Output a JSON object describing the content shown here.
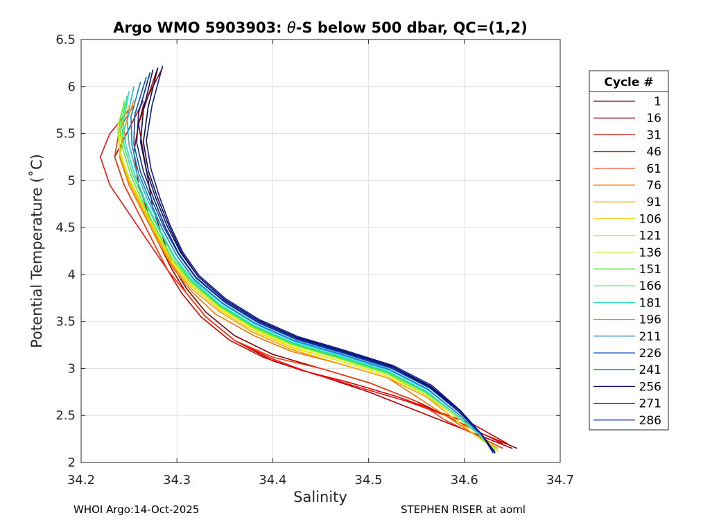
{
  "chart_data": {
    "type": "line",
    "title_prefix": "Argo WMO 5903903: ",
    "title_theta": "θ",
    "title_suffix": "-S below 500 dbar,  QC=(1,2)",
    "xlabel": "Salinity",
    "ylabel": "Potential Temperature (˚C)",
    "xlim": [
      34.2,
      34.7
    ],
    "ylim": [
      2,
      6.5
    ],
    "xticks": [
      34.2,
      34.3,
      34.4,
      34.5,
      34.6,
      34.7
    ],
    "xtick_labels": [
      "34.2",
      "34.3",
      "34.4",
      "34.5",
      "34.6",
      "34.7"
    ],
    "yticks": [
      2,
      2.5,
      3,
      3.5,
      4,
      4.5,
      5,
      5.5,
      6,
      6.5
    ],
    "ytick_labels": [
      "2",
      "2.5",
      "3",
      "3.5",
      "4",
      "4.5",
      "5",
      "5.5",
      "6",
      "6.5"
    ],
    "grid": true,
    "legend": {
      "title": "Cycle #",
      "placement": "outside-right",
      "entries": [
        {
          "label": "1",
          "color": "#800000"
        },
        {
          "label": "16",
          "color": "#aa0000"
        },
        {
          "label": "31",
          "color": "#d40000"
        },
        {
          "label": "46",
          "color": "#ee1010"
        },
        {
          "label": "61",
          "color": "#f23a0a"
        },
        {
          "label": "76",
          "color": "#f57600"
        },
        {
          "label": "91",
          "color": "#f5a000"
        },
        {
          "label": "106",
          "color": "#f5d000"
        },
        {
          "label": "121",
          "color": "#e5ee10"
        },
        {
          "label": "136",
          "color": "#b4f020"
        },
        {
          "label": "151",
          "color": "#5ee83a"
        },
        {
          "label": "166",
          "color": "#30e08a"
        },
        {
          "label": "181",
          "color": "#20e0c0"
        },
        {
          "label": "196",
          "color": "#1ab8e0"
        },
        {
          "label": "211",
          "color": "#1080c8"
        },
        {
          "label": "226",
          "color": "#0a50b8"
        },
        {
          "label": "241",
          "color": "#0a20a0"
        },
        {
          "label": "256",
          "color": "#06106a"
        },
        {
          "label": "271",
          "color": "#0a0a50"
        },
        {
          "label": "286",
          "color": "#0a1a9a"
        }
      ]
    },
    "series": [
      {
        "name": "1",
        "color": "#800000",
        "x": [
          34.655,
          34.62,
          34.59,
          34.55,
          34.5,
          34.45,
          34.4,
          34.36,
          34.33,
          34.31,
          34.295,
          34.285,
          34.275,
          34.27,
          34.265,
          34.26,
          34.265,
          34.275,
          34.285
        ],
        "y": [
          2.15,
          2.3,
          2.45,
          2.65,
          2.85,
          3.0,
          3.15,
          3.35,
          3.6,
          3.85,
          4.1,
          4.4,
          4.7,
          5.0,
          5.3,
          5.6,
          5.8,
          6.0,
          6.2
        ]
      },
      {
        "name": "16",
        "color": "#aa0000",
        "x": [
          34.65,
          34.6,
          34.55,
          34.5,
          34.45,
          34.4,
          34.36,
          34.33,
          34.31,
          34.295,
          34.28,
          34.27,
          34.26,
          34.255,
          34.26,
          34.27,
          34.28
        ],
        "y": [
          2.15,
          2.35,
          2.55,
          2.75,
          2.92,
          3.08,
          3.3,
          3.55,
          3.8,
          4.05,
          4.35,
          4.65,
          4.95,
          5.3,
          5.6,
          5.9,
          6.2
        ]
      },
      {
        "name": "31",
        "color": "#d40000",
        "x": [
          34.645,
          34.61,
          34.57,
          34.53,
          34.48,
          34.43,
          34.39,
          34.355,
          34.325,
          34.305,
          34.29,
          34.275,
          34.26,
          34.245,
          34.235,
          34.25,
          34.265
        ],
        "y": [
          2.2,
          2.4,
          2.55,
          2.7,
          2.85,
          2.98,
          3.12,
          3.3,
          3.55,
          3.8,
          4.05,
          4.35,
          4.65,
          4.95,
          5.25,
          5.55,
          5.85
        ]
      },
      {
        "name": "46",
        "color": "#ee1010",
        "x": [
          34.64,
          34.61,
          34.58,
          34.54,
          34.49,
          34.44,
          34.4,
          34.36,
          34.33,
          34.31,
          34.29,
          34.27,
          34.25,
          34.23,
          34.22,
          34.23,
          34.25
        ],
        "y": [
          2.2,
          2.35,
          2.5,
          2.65,
          2.8,
          2.95,
          3.1,
          3.3,
          3.55,
          3.8,
          4.05,
          4.35,
          4.65,
          4.95,
          5.25,
          5.5,
          5.75
        ]
      },
      {
        "name": "61",
        "color": "#f23a0a",
        "x": [
          34.64,
          34.61,
          34.58,
          34.55,
          34.5,
          34.45,
          34.4,
          34.36,
          34.33,
          34.31,
          34.29,
          34.275,
          34.26,
          34.245,
          34.235,
          34.24,
          34.255
        ],
        "y": [
          2.15,
          2.3,
          2.45,
          2.65,
          2.85,
          3.0,
          3.12,
          3.3,
          3.55,
          3.8,
          4.05,
          4.35,
          4.65,
          4.95,
          5.25,
          5.55,
          5.8
        ]
      },
      {
        "name": "76",
        "color": "#f57600",
        "x": [
          34.635,
          34.61,
          34.58,
          34.55,
          34.52,
          34.47,
          34.42,
          34.38,
          34.34,
          34.315,
          34.295,
          34.28,
          34.265,
          34.25,
          34.24,
          34.245,
          34.255
        ],
        "y": [
          2.15,
          2.3,
          2.5,
          2.7,
          2.9,
          3.05,
          3.18,
          3.35,
          3.58,
          3.82,
          4.08,
          4.35,
          4.65,
          4.95,
          5.25,
          5.55,
          5.85
        ]
      },
      {
        "name": "91",
        "color": "#f5a000",
        "x": [
          34.635,
          34.61,
          34.585,
          34.56,
          34.52,
          34.47,
          34.42,
          34.38,
          34.345,
          34.315,
          34.295,
          34.28,
          34.265,
          34.25,
          34.24,
          34.245,
          34.255
        ],
        "y": [
          2.15,
          2.3,
          2.5,
          2.7,
          2.9,
          3.05,
          3.2,
          3.38,
          3.6,
          3.85,
          4.1,
          4.38,
          4.68,
          4.98,
          5.28,
          5.55,
          5.85
        ]
      },
      {
        "name": "106",
        "color": "#f5d000",
        "x": [
          34.635,
          34.61,
          34.585,
          34.56,
          34.52,
          34.47,
          34.42,
          34.38,
          34.345,
          34.315,
          34.295,
          34.28,
          34.265,
          34.25,
          34.24,
          34.24,
          34.25
        ],
        "y": [
          2.12,
          2.3,
          2.5,
          2.72,
          2.92,
          3.08,
          3.22,
          3.4,
          3.62,
          3.88,
          4.12,
          4.4,
          4.7,
          5.0,
          5.3,
          5.55,
          5.8
        ]
      },
      {
        "name": "121",
        "color": "#e5ee10",
        "x": [
          34.635,
          34.615,
          34.59,
          34.56,
          34.52,
          34.47,
          34.42,
          34.38,
          34.345,
          34.315,
          34.295,
          34.28,
          34.265,
          34.25,
          34.24,
          34.24,
          34.248
        ],
        "y": [
          2.12,
          2.3,
          2.5,
          2.72,
          2.92,
          3.08,
          3.23,
          3.42,
          3.64,
          3.9,
          4.15,
          4.42,
          4.72,
          5.02,
          5.32,
          5.55,
          5.82
        ]
      },
      {
        "name": "136",
        "color": "#b4f020",
        "x": [
          34.635,
          34.615,
          34.59,
          34.56,
          34.52,
          34.47,
          34.42,
          34.38,
          34.345,
          34.315,
          34.295,
          34.28,
          34.265,
          34.25,
          34.24,
          34.238,
          34.245
        ],
        "y": [
          2.12,
          2.3,
          2.5,
          2.72,
          2.94,
          3.1,
          3.25,
          3.43,
          3.65,
          3.9,
          4.15,
          4.42,
          4.72,
          5.02,
          5.32,
          5.58,
          5.82
        ]
      },
      {
        "name": "151",
        "color": "#5ee83a",
        "x": [
          34.632,
          34.615,
          34.59,
          34.56,
          34.52,
          34.47,
          34.42,
          34.38,
          34.345,
          34.315,
          34.295,
          34.28,
          34.265,
          34.252,
          34.243,
          34.24,
          34.245
        ],
        "y": [
          2.12,
          2.3,
          2.52,
          2.74,
          2.95,
          3.11,
          3.26,
          3.44,
          3.66,
          3.92,
          4.17,
          4.45,
          4.75,
          5.05,
          5.35,
          5.6,
          5.85
        ]
      },
      {
        "name": "166",
        "color": "#30e08a",
        "x": [
          34.632,
          34.615,
          34.59,
          34.56,
          34.52,
          34.47,
          34.42,
          34.38,
          34.345,
          34.315,
          34.297,
          34.282,
          34.267,
          34.254,
          34.245,
          34.242,
          34.248
        ],
        "y": [
          2.12,
          2.3,
          2.52,
          2.75,
          2.96,
          3.12,
          3.27,
          3.45,
          3.67,
          3.93,
          4.18,
          4.46,
          4.76,
          5.06,
          5.36,
          5.62,
          5.9
        ]
      },
      {
        "name": "181",
        "color": "#20e0c0",
        "x": [
          34.632,
          34.615,
          34.59,
          34.56,
          34.52,
          34.47,
          34.42,
          34.38,
          34.345,
          34.317,
          34.298,
          34.283,
          34.268,
          34.256,
          34.247,
          34.244,
          34.25
        ],
        "y": [
          2.12,
          2.3,
          2.52,
          2.76,
          2.97,
          3.13,
          3.28,
          3.46,
          3.68,
          3.93,
          4.18,
          4.46,
          4.76,
          5.06,
          5.36,
          5.62,
          5.95
        ]
      },
      {
        "name": "196",
        "color": "#1ab8e0",
        "x": [
          34.632,
          34.617,
          34.592,
          34.562,
          34.522,
          34.472,
          34.422,
          34.382,
          34.347,
          34.318,
          34.3,
          34.285,
          34.27,
          34.258,
          34.25,
          34.248,
          34.255
        ],
        "y": [
          2.1,
          2.3,
          2.53,
          2.77,
          2.98,
          3.14,
          3.29,
          3.47,
          3.69,
          3.94,
          4.2,
          4.48,
          4.78,
          5.08,
          5.38,
          5.65,
          6.0
        ]
      },
      {
        "name": "211",
        "color": "#1080c8",
        "x": [
          34.632,
          34.617,
          34.592,
          34.562,
          34.522,
          34.472,
          34.422,
          34.382,
          34.347,
          34.318,
          34.3,
          34.285,
          34.272,
          34.26,
          34.253,
          34.252,
          34.262
        ],
        "y": [
          2.1,
          2.3,
          2.53,
          2.78,
          2.99,
          3.15,
          3.3,
          3.48,
          3.7,
          3.95,
          4.2,
          4.48,
          4.78,
          5.08,
          5.38,
          5.68,
          6.05
        ]
      },
      {
        "name": "226",
        "color": "#0a50b8",
        "x": [
          34.632,
          34.618,
          34.594,
          34.564,
          34.524,
          34.474,
          34.424,
          34.384,
          34.349,
          34.32,
          34.302,
          34.287,
          34.274,
          34.262,
          34.255,
          34.256,
          34.268
        ],
        "y": [
          2.1,
          2.3,
          2.54,
          2.79,
          3.0,
          3.16,
          3.31,
          3.49,
          3.71,
          3.96,
          4.21,
          4.49,
          4.79,
          5.09,
          5.39,
          5.7,
          6.1
        ]
      },
      {
        "name": "241",
        "color": "#0a20a0",
        "x": [
          34.632,
          34.618,
          34.594,
          34.564,
          34.524,
          34.474,
          34.424,
          34.384,
          34.349,
          34.32,
          34.302,
          34.288,
          34.276,
          34.265,
          34.258,
          34.26,
          34.272
        ],
        "y": [
          2.1,
          2.3,
          2.54,
          2.8,
          3.01,
          3.17,
          3.32,
          3.5,
          3.72,
          3.97,
          4.22,
          4.5,
          4.8,
          5.1,
          5.4,
          5.72,
          6.15
        ]
      },
      {
        "name": "256",
        "color": "#06106a",
        "x": [
          34.632,
          34.618,
          34.595,
          34.565,
          34.525,
          34.475,
          34.425,
          34.385,
          34.35,
          34.322,
          34.304,
          34.29,
          34.278,
          34.268,
          34.262,
          34.265,
          34.275
        ],
        "y": [
          2.1,
          2.3,
          2.55,
          2.8,
          3.02,
          3.18,
          3.33,
          3.51,
          3.73,
          3.98,
          4.23,
          4.51,
          4.81,
          5.11,
          5.41,
          5.75,
          6.18
        ]
      },
      {
        "name": "271",
        "color": "#0a0a50",
        "x": [
          34.632,
          34.618,
          34.595,
          34.565,
          34.525,
          34.475,
          34.425,
          34.385,
          34.35,
          34.322,
          34.305,
          34.292,
          34.28,
          34.27,
          34.265,
          34.27,
          34.28
        ],
        "y": [
          2.1,
          2.3,
          2.55,
          2.81,
          3.02,
          3.18,
          3.33,
          3.51,
          3.73,
          3.98,
          4.23,
          4.51,
          4.81,
          5.11,
          5.41,
          5.78,
          6.2
        ]
      },
      {
        "name": "286",
        "color": "#0a1a9a",
        "x": [
          34.63,
          34.618,
          34.596,
          34.566,
          34.526,
          34.476,
          34.426,
          34.386,
          34.351,
          34.323,
          34.306,
          34.293,
          34.282,
          34.273,
          34.268,
          34.274,
          34.285
        ],
        "y": [
          2.1,
          2.3,
          2.55,
          2.82,
          3.03,
          3.19,
          3.34,
          3.52,
          3.74,
          3.99,
          4.24,
          4.52,
          4.82,
          5.12,
          5.42,
          5.8,
          6.22
        ]
      }
    ]
  },
  "footer": {
    "left": "WHOI Argo:14-Oct-2025",
    "right": "STEPHEN RISER at aoml"
  }
}
